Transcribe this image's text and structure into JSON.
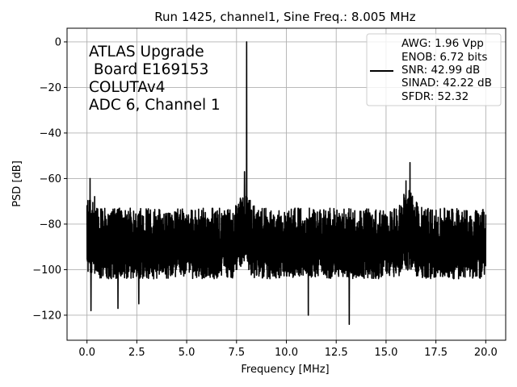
{
  "chart_data": {
    "type": "line",
    "title": "Run 1425, channel1, Sine Freq.: 8.005 MHz",
    "xlabel": "Frequency [MHz]",
    "ylabel": "PSD [dB]",
    "xlim": [
      -1.0,
      21.0
    ],
    "ylim": [
      -131,
      6
    ],
    "xticks": [
      0.0,
      2.5,
      5.0,
      7.5,
      10.0,
      12.5,
      15.0,
      17.5,
      20.0
    ],
    "xtick_labels": [
      "0.0",
      "2.5",
      "5.0",
      "7.5",
      "10.0",
      "12.5",
      "15.0",
      "17.5",
      "20.0"
    ],
    "yticks": [
      0,
      -20,
      -40,
      -60,
      -80,
      -100,
      -120
    ],
    "ytick_labels": [
      "0",
      "−20",
      "−40",
      "−60",
      "−80",
      "−100",
      "−120"
    ],
    "grid": true,
    "annotation_lines": [
      "ATLAS Upgrade",
      " Board E169153",
      "COLUTAv4",
      "ADC 6, Channel 1"
    ],
    "legend": {
      "placement": "top-right",
      "lines": [
        "AWG: 1.96 Vpp",
        "ENOB: 6.72 bits",
        "SNR: 42.99 dB",
        "SINAD: 42.22 dB",
        "SFDR: 52.32"
      ]
    },
    "series": [
      {
        "color": "#000000",
        "frequency_range": [
          0.0,
          20.0
        ],
        "noise_floor": -90,
        "noise_spread": [
          -100,
          -72
        ],
        "peaks": [
          {
            "x": 8.005,
            "y": 0
          },
          {
            "x": 7.9,
            "y": -57
          },
          {
            "x": 16.2,
            "y": -53
          },
          {
            "x": 16.0,
            "y": -61
          },
          {
            "x": 0.15,
            "y": -60
          },
          {
            "x": 0.2,
            "y": -118
          }
        ],
        "dips": [
          {
            "x": 11.1,
            "y": -120
          },
          {
            "x": 13.15,
            "y": -124
          },
          {
            "x": 1.55,
            "y": -117
          },
          {
            "x": 2.6,
            "y": -115
          }
        ]
      }
    ]
  }
}
